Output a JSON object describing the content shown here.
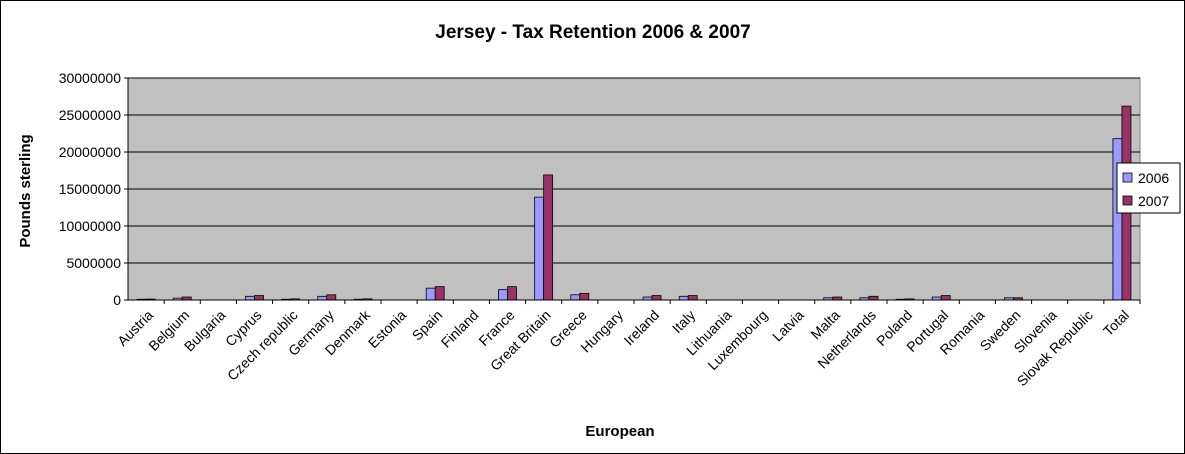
{
  "chart_data": {
    "type": "bar",
    "title": "Jersey - Tax Retention 2006 & 2007",
    "xlabel": "European",
    "ylabel": "Pounds sterling",
    "ylim": [
      0,
      30000000
    ],
    "yticks": [
      "0",
      "5000000",
      "10000000",
      "15000000",
      "20000000",
      "25000000",
      "30000000"
    ],
    "grid": true,
    "legend_position": "right",
    "plot_background": "#c0c0c0",
    "categories": [
      "Austria",
      "Belgium",
      "Bulgaria",
      "Cyprus",
      "Czech republic",
      "Germany",
      "Denmark",
      "Estonia",
      "Spain",
      "Finland",
      "France",
      "Great Britain",
      "Greece",
      "Hungary",
      "Ireland",
      "Italy",
      "Lithuania",
      "Luxembourg",
      "Latvia",
      "Malta",
      "Netherlands",
      "Poland",
      "Portugal",
      "Romania",
      "Sweden",
      "Slovenia",
      "Slovak Republic",
      "Total"
    ],
    "series": [
      {
        "name": "2006",
        "color": "#9999ff",
        "values": [
          100000,
          250000,
          0,
          500000,
          100000,
          500000,
          100000,
          0,
          1600000,
          0,
          1400000,
          13900000,
          700000,
          0,
          400000,
          500000,
          0,
          0,
          0,
          300000,
          300000,
          100000,
          400000,
          0,
          300000,
          0,
          0,
          21800000
        ]
      },
      {
        "name": "2007",
        "color": "#993366",
        "values": [
          120000,
          400000,
          0,
          600000,
          150000,
          700000,
          150000,
          0,
          1800000,
          0,
          1800000,
          16900000,
          900000,
          0,
          600000,
          600000,
          0,
          0,
          0,
          400000,
          500000,
          150000,
          600000,
          0,
          300000,
          0,
          0,
          26200000
        ]
      }
    ]
  }
}
